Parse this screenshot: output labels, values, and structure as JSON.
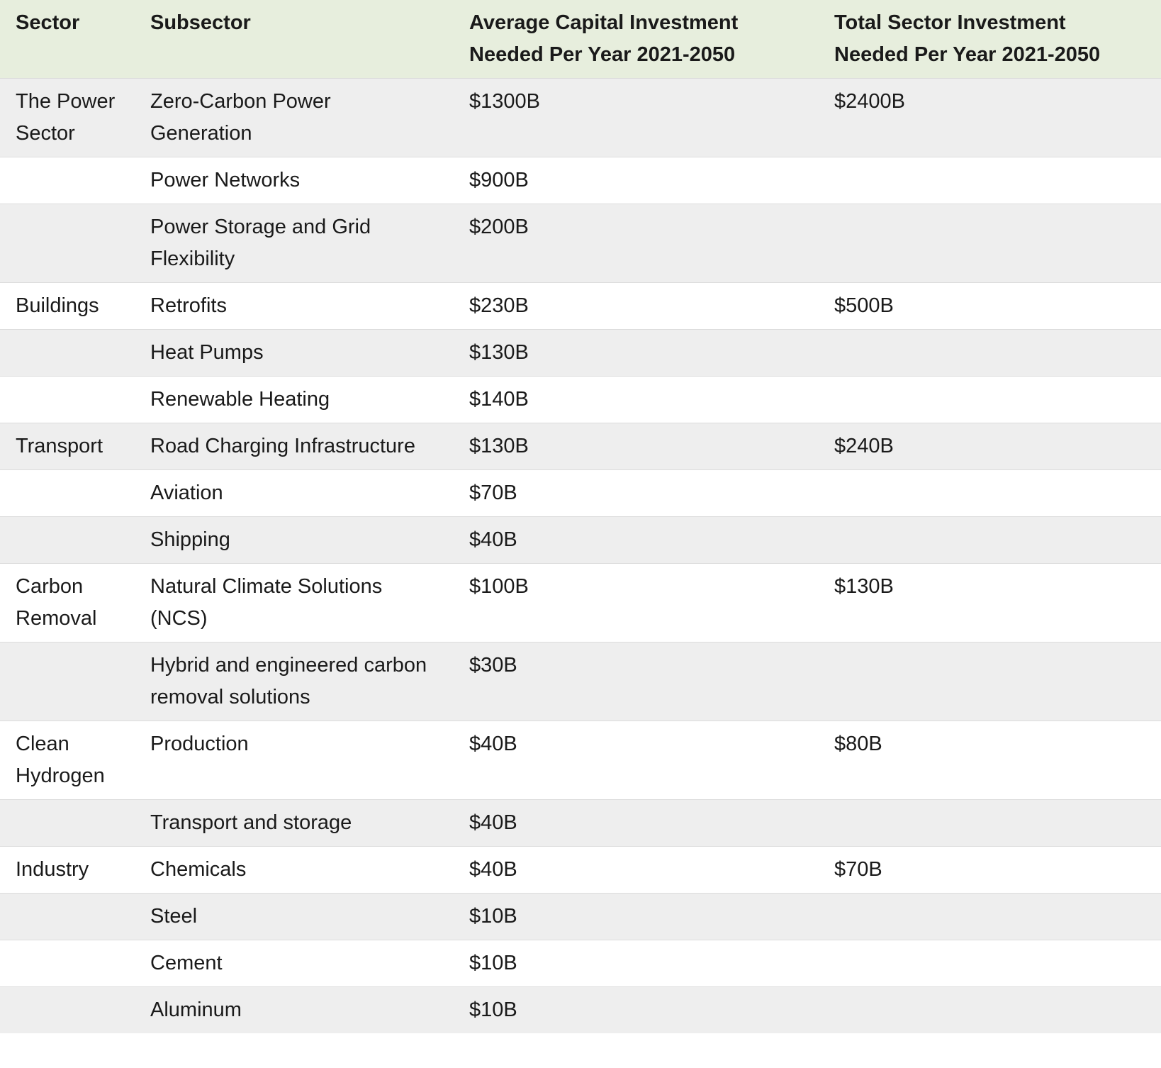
{
  "table": {
    "headers": [
      "Sector",
      "Subsector",
      "Average Capital Investment Needed Per Year 2021-2050",
      "Total Sector Investment Needed Per Year 2021-2050"
    ],
    "rows": [
      {
        "sector": "The Power Sector",
        "subsector": "Zero-Carbon Power Generation",
        "average": "$1300B",
        "total": "$2400B"
      },
      {
        "subsector": "Power Networks",
        "average": "$900B"
      },
      {
        "subsector": "Power Storage and Grid Flexibility",
        "average": "$200B"
      },
      {
        "sector": "Buildings",
        "subsector": "Retrofits",
        "average": "$230B",
        "total": "$500B"
      },
      {
        "subsector": "Heat Pumps",
        "average": "$130B"
      },
      {
        "subsector": "Renewable Heating",
        "average": "$140B"
      },
      {
        "sector": "Transport",
        "subsector": "Road Charging Infrastructure",
        "average": "$130B",
        "total": "$240B"
      },
      {
        "subsector": "Aviation",
        "average": "$70B"
      },
      {
        "subsector": "Shipping",
        "average": "$40B"
      },
      {
        "sector": "Carbon Removal",
        "subsector": "Natural Climate Solutions (NCS)",
        "average": "$100B",
        "total": "$130B"
      },
      {
        "subsector": "Hybrid and engineered carbon removal solutions",
        "average": "$30B"
      },
      {
        "sector": "Clean Hydrogen",
        "subsector": "Production",
        "average": "$40B",
        "total": "$80B"
      },
      {
        "subsector": "Transport and storage",
        "average": "$40B"
      },
      {
        "sector": "Industry",
        "subsector": "Chemicals",
        "average": "$40B",
        "total": "$70B"
      },
      {
        "subsector": "Steel",
        "average": "$10B"
      },
      {
        "subsector": "Cement",
        "average": "$10B"
      },
      {
        "subsector": "Aluminum",
        "average": "$10B"
      }
    ]
  }
}
